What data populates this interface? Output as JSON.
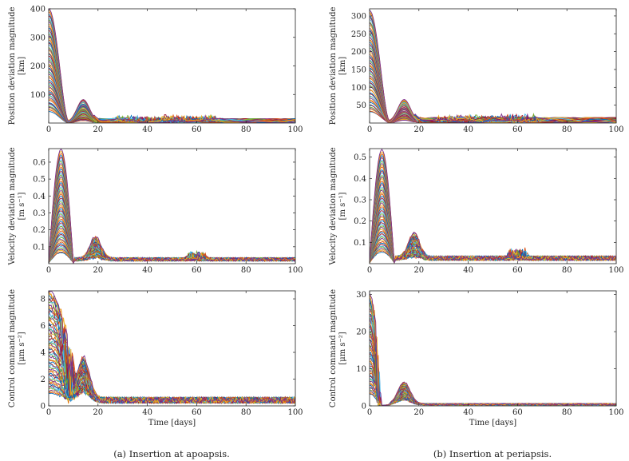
{
  "captions": [
    "(a) Insertion at apoapsis.",
    "(b) Insertion at periapsis."
  ],
  "palette": [
    "#0072BD",
    "#D95319",
    "#EDB120",
    "#7E2F8E",
    "#77AC30",
    "#4DBEEE",
    "#A2142F"
  ],
  "chart_data": [
    {
      "id": "a-top",
      "type": "line",
      "ylabel": [
        "Position deviation magnitude",
        "[km]"
      ],
      "xlabel": "",
      "xlim": [
        0,
        100
      ],
      "ylim": [
        0,
        400
      ],
      "xticks": [
        "0",
        "20",
        "40",
        "60",
        "80",
        "100"
      ],
      "yticks": [
        "100",
        "200",
        "300",
        "400"
      ],
      "series_count": 60,
      "peak_range": [
        40,
        400
      ],
      "secondary_peak_day": 14,
      "secondary_peak_fraction": 0.2,
      "steady_level": 12
    },
    {
      "id": "b-top",
      "type": "line",
      "ylabel": [
        "Position deviation magnitude",
        "[km]"
      ],
      "xlabel": "",
      "xlim": [
        0,
        100
      ],
      "ylim": [
        0,
        320
      ],
      "xticks": [
        "0",
        "20",
        "40",
        "60",
        "80",
        "100"
      ],
      "yticks": [
        "50",
        "100",
        "150",
        "200",
        "250",
        "300"
      ],
      "series_count": 60,
      "peak_range": [
        30,
        315
      ],
      "secondary_peak_day": 14,
      "secondary_peak_fraction": 0.2,
      "steady_level": 12
    },
    {
      "id": "a-mid",
      "type": "line",
      "ylabel": [
        "Velocity deviation magnitude",
        "[m s⁻¹]"
      ],
      "xlabel": "",
      "xlim": [
        0,
        100
      ],
      "ylim": [
        0,
        0.68
      ],
      "xticks": [
        "0",
        "20",
        "40",
        "60",
        "80",
        "100"
      ],
      "yticks": [
        "0.1",
        "0.2",
        "0.3",
        "0.4",
        "0.5",
        "0.6"
      ],
      "series_count": 60,
      "peak_range": [
        0.06,
        0.67
      ],
      "first_peak_day": 5,
      "secondary_peak_day": 19,
      "secondary_peak_fraction": 0.2,
      "steady_level": 0.03
    },
    {
      "id": "b-mid",
      "type": "line",
      "ylabel": [
        "Velocity deviation magnitude",
        "[m s⁻¹]"
      ],
      "xlabel": "",
      "xlim": [
        0,
        100
      ],
      "ylim": [
        0,
        0.54
      ],
      "xticks": [
        "0",
        "20",
        "40",
        "60",
        "80",
        "100"
      ],
      "yticks": [
        "0.1",
        "0.2",
        "0.3",
        "0.4",
        "0.5"
      ],
      "series_count": 60,
      "peak_range": [
        0.05,
        0.53
      ],
      "first_peak_day": 5,
      "secondary_peak_day": 18,
      "secondary_peak_fraction": 0.22,
      "steady_level": 0.03
    },
    {
      "id": "a-bot",
      "type": "line",
      "ylabel": [
        "Control command magnitude",
        "[μm s⁻²]"
      ],
      "xlabel": "Time [days]",
      "xlim": [
        0,
        100
      ],
      "ylim": [
        0,
        8.6
      ],
      "xticks": [
        "0",
        "20",
        "40",
        "60",
        "80",
        "100"
      ],
      "yticks": [
        "0",
        "2",
        "4",
        "6",
        "8"
      ],
      "series_count": 60,
      "peak_range": [
        0.8,
        8.5
      ],
      "decay_day": 10,
      "secondary_peak_day": 14,
      "secondary_peak_value": 3.2,
      "steady_level": 0.5
    },
    {
      "id": "b-bot",
      "type": "line",
      "ylabel": [
        "Control command magnitude",
        "[μm s⁻²]"
      ],
      "xlabel": "Time [days]",
      "xlim": [
        0,
        100
      ],
      "ylim": [
        0,
        31
      ],
      "xticks": [
        "0",
        "20",
        "40",
        "60",
        "80",
        "100"
      ],
      "yticks": [
        "0",
        "10",
        "20",
        "30"
      ],
      "series_count": 60,
      "peak_range": [
        3,
        30
      ],
      "decay_day": 4,
      "secondary_peak_day": 14,
      "secondary_peak_value": 6,
      "steady_level": 0.5
    }
  ]
}
